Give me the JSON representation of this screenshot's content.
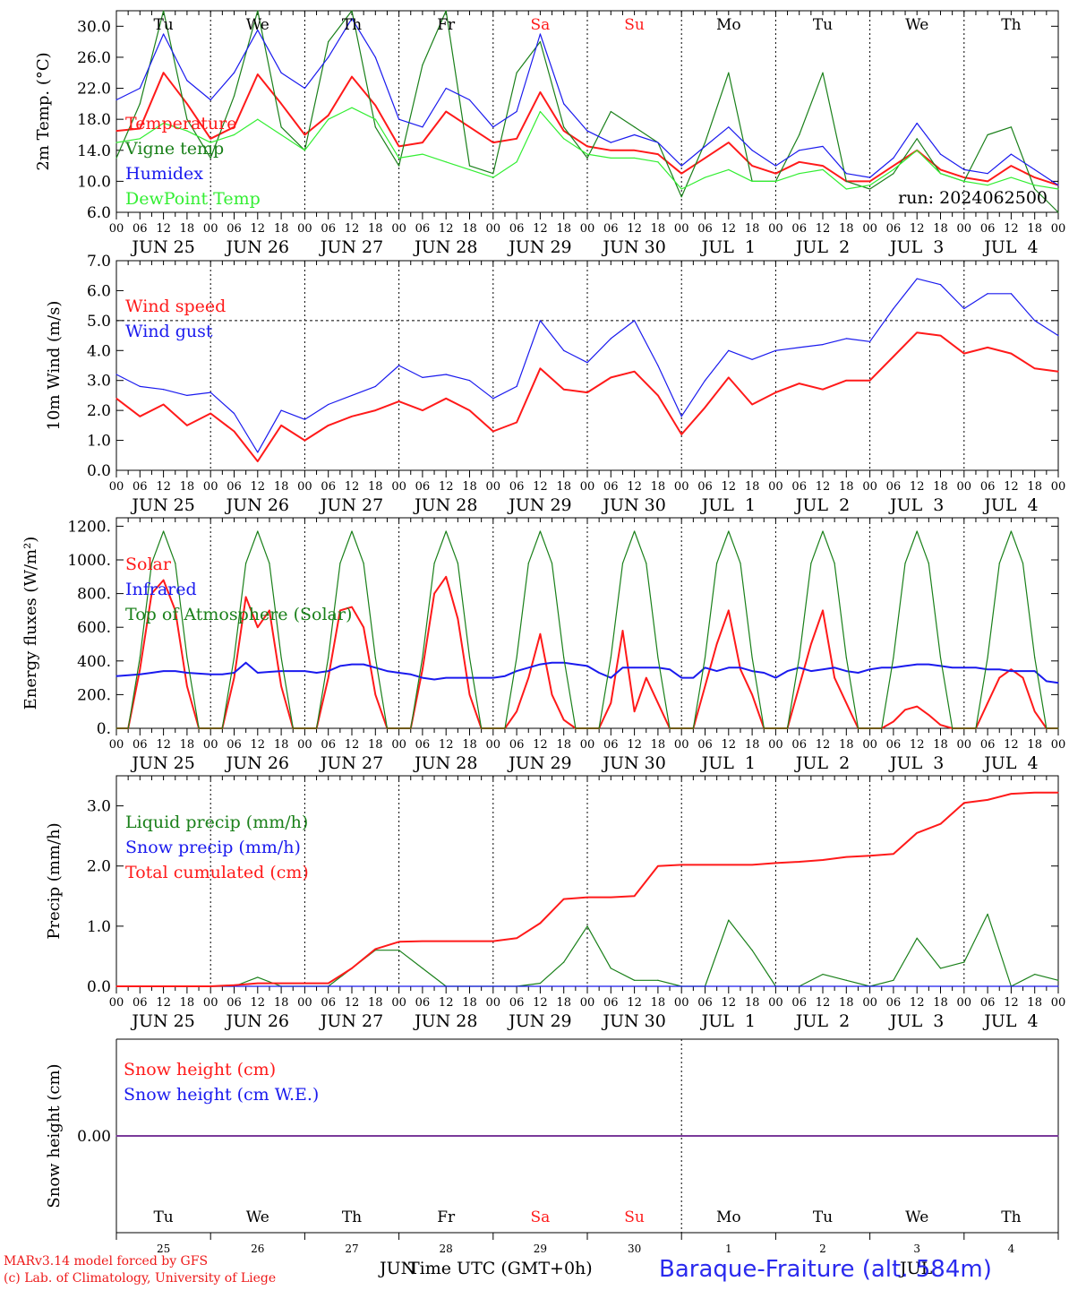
{
  "colors": {
    "red": "#ff1a1a",
    "darkgreen": "#1a801a",
    "blue": "#1a1aee",
    "lightgreen": "#33ee33",
    "purple": "#7a3a9a"
  },
  "days": [
    {
      "abbr": "Tu",
      "date": "JUN 25",
      "num": "25",
      "weekend": false
    },
    {
      "abbr": "We",
      "date": "JUN 26",
      "num": "26",
      "weekend": false
    },
    {
      "abbr": "Th",
      "date": "JUN 27",
      "num": "27",
      "weekend": false
    },
    {
      "abbr": "Fr",
      "date": "JUN 28",
      "num": "28",
      "weekend": false
    },
    {
      "abbr": "Sa",
      "date": "JUN 29",
      "num": "29",
      "weekend": true
    },
    {
      "abbr": "Su",
      "date": "JUN 30",
      "num": "30",
      "weekend": true
    },
    {
      "abbr": "Mo",
      "date": "JUL  1",
      "num": "1",
      "weekend": false
    },
    {
      "abbr": "Tu",
      "date": "JUL  2",
      "num": "2",
      "weekend": false
    },
    {
      "abbr": "We",
      "date": "JUL  3",
      "num": "3",
      "weekend": false
    },
    {
      "abbr": "Th",
      "date": "JUL  4",
      "num": "4",
      "weekend": false
    }
  ],
  "hour_ticks": [
    "00",
    "06",
    "12",
    "18"
  ],
  "run_label": "run: 2024062500",
  "bottom": {
    "month_left": "JUN",
    "month_right": "JUL",
    "axis_label": "Time UTC (GMT+0h)",
    "credit_line1": "MARv3.14 model forced by GFS",
    "credit_line2": "(c) Lab. of Climatology, University of Liege",
    "station": "Baraque-Fraiture (alt. 584m)"
  },
  "chart_data": [
    {
      "type": "line",
      "ylabel": "2m Temp. (°C)",
      "ylim": [
        6,
        32
      ],
      "yticks": [
        "6.0",
        "10.0",
        "14.0",
        "18.0",
        "22.0",
        "26.0",
        "30.0"
      ],
      "x_hours": [
        0,
        6,
        12,
        18,
        24,
        30,
        36,
        42,
        48,
        54,
        60,
        66,
        72,
        78,
        84,
        90,
        96,
        102,
        108,
        114,
        120,
        126,
        132,
        138,
        144,
        150,
        156,
        162,
        168,
        174,
        180,
        186,
        192,
        198,
        204,
        210,
        216,
        222,
        228,
        234,
        240
      ],
      "legend": [
        "Temperature",
        "Vigne temp",
        "Humidex",
        "DewPoint Temp"
      ],
      "series": [
        {
          "name": "Temperature",
          "color": "red",
          "values": [
            16.5,
            16.8,
            24.0,
            20.0,
            15.5,
            17.0,
            23.8,
            20.0,
            16.0,
            18.5,
            23.5,
            19.8,
            14.5,
            15.0,
            19.0,
            17.0,
            15.0,
            15.5,
            21.5,
            16.5,
            14.5,
            14.0,
            14.0,
            13.5,
            11.0,
            13.0,
            15.0,
            12.0,
            11.0,
            12.5,
            12.0,
            10.0,
            10.0,
            12.0,
            14.0,
            11.5,
            10.5,
            10.0,
            12.0,
            10.5,
            9.5
          ]
        },
        {
          "name": "Vigne temp",
          "color": "darkgreen",
          "values": [
            13.0,
            20.0,
            32.0,
            18.0,
            13.0,
            21.0,
            32.0,
            17.0,
            14.0,
            28.0,
            32.0,
            17.0,
            12.0,
            25.0,
            32.0,
            12.0,
            11.0,
            24.0,
            28.0,
            17.0,
            13.0,
            19.0,
            17.0,
            15.0,
            8.0,
            15.0,
            24.0,
            10.0,
            10.0,
            16.0,
            24.0,
            10.0,
            9.0,
            11.0,
            15.5,
            11.0,
            10.0,
            16.0,
            17.0,
            9.0,
            6.0
          ]
        },
        {
          "name": "Humidex",
          "color": "blue",
          "values": [
            20.5,
            22.0,
            29.0,
            23.0,
            20.5,
            24.0,
            29.5,
            24.0,
            22.0,
            26.0,
            31.0,
            26.0,
            18.0,
            17.0,
            22.0,
            20.5,
            17.0,
            19.0,
            29.0,
            20.0,
            16.5,
            15.0,
            16.0,
            15.0,
            12.0,
            14.5,
            17.0,
            14.0,
            12.0,
            14.0,
            14.5,
            11.0,
            10.5,
            13.0,
            17.5,
            13.5,
            11.5,
            11.0,
            13.5,
            11.5,
            9.5
          ]
        },
        {
          "name": "DewPoint Temp",
          "color": "lightgreen",
          "values": [
            15.0,
            15.5,
            17.5,
            16.5,
            15.0,
            16.0,
            18.0,
            16.0,
            14.0,
            18.0,
            19.5,
            18.0,
            13.0,
            13.5,
            12.5,
            11.5,
            10.5,
            12.5,
            19.0,
            15.5,
            13.5,
            13.0,
            13.0,
            12.5,
            9.0,
            10.5,
            11.5,
            10.0,
            10.0,
            11.0,
            11.5,
            9.0,
            9.5,
            11.5,
            14.0,
            11.0,
            10.0,
            9.5,
            10.5,
            9.5,
            9.0
          ]
        }
      ]
    },
    {
      "type": "line",
      "ylabel": "10m Wind (m/s)",
      "ylim": [
        0,
        7
      ],
      "yticks": [
        "0.0",
        "1.0",
        "2.0",
        "3.0",
        "4.0",
        "5.0",
        "6.0",
        "7.0"
      ],
      "reference_line": 5.0,
      "x_hours": [
        0,
        6,
        12,
        18,
        24,
        30,
        36,
        42,
        48,
        54,
        60,
        66,
        72,
        78,
        84,
        90,
        96,
        102,
        108,
        114,
        120,
        126,
        132,
        138,
        144,
        150,
        156,
        162,
        168,
        174,
        180,
        186,
        192,
        198,
        204,
        210,
        216,
        222,
        228,
        234,
        240
      ],
      "legend": [
        "Wind speed",
        "Wind gust"
      ],
      "series": [
        {
          "name": "Wind speed",
          "color": "red",
          "values": [
            2.4,
            1.8,
            2.2,
            1.5,
            1.9,
            1.3,
            0.3,
            1.5,
            1.0,
            1.5,
            1.8,
            2.0,
            2.3,
            2.0,
            2.4,
            2.0,
            1.3,
            1.6,
            3.4,
            2.7,
            2.6,
            3.1,
            3.3,
            2.5,
            1.2,
            2.1,
            3.1,
            2.2,
            2.6,
            2.9,
            2.7,
            3.0,
            3.0,
            3.8,
            4.6,
            4.5,
            3.9,
            4.1,
            3.9,
            3.4,
            3.3
          ]
        },
        {
          "name": "Wind gust",
          "color": "blue",
          "values": [
            3.2,
            2.8,
            2.7,
            2.5,
            2.6,
            1.9,
            0.6,
            2.0,
            1.7,
            2.2,
            2.5,
            2.8,
            3.5,
            3.1,
            3.2,
            3.0,
            2.4,
            2.8,
            5.0,
            4.0,
            3.6,
            4.4,
            5.0,
            3.5,
            1.8,
            3.0,
            4.0,
            3.7,
            4.0,
            4.1,
            4.2,
            4.4,
            4.3,
            5.4,
            6.4,
            6.2,
            5.4,
            5.9,
            5.9,
            5.0,
            4.5
          ]
        }
      ]
    },
    {
      "type": "line",
      "ylabel": "Energy fluxes (W/m²)",
      "ylim": [
        0,
        1200
      ],
      "yticks": [
        "0.",
        "200.",
        "400.",
        "600.",
        "800.",
        "1000.",
        "1200."
      ],
      "x_hours": [
        0,
        3,
        6,
        9,
        12,
        15,
        18,
        21,
        24,
        27,
        30,
        33,
        36,
        39,
        42,
        45,
        48,
        51,
        54,
        57,
        60,
        63,
        66,
        69,
        72,
        75,
        78,
        81,
        84,
        87,
        90,
        93,
        96,
        99,
        102,
        105,
        108,
        111,
        114,
        117,
        120,
        123,
        126,
        129,
        132,
        135,
        138,
        141,
        144,
        147,
        150,
        153,
        156,
        159,
        162,
        165,
        168,
        171,
        174,
        177,
        180,
        183,
        186,
        189,
        192,
        195,
        198,
        201,
        204,
        207,
        210,
        213,
        216,
        219,
        222,
        225,
        228,
        231,
        234,
        237,
        240
      ],
      "legend": [
        "Solar",
        "Infrared",
        "Top of Atmosphere (Solar)"
      ],
      "series": [
        {
          "name": "Solar",
          "color": "red",
          "values": [
            0,
            0,
            350,
            800,
            880,
            700,
            250,
            0,
            0,
            0,
            300,
            780,
            600,
            700,
            250,
            0,
            0,
            0,
            300,
            700,
            720,
            600,
            200,
            0,
            0,
            0,
            350,
            800,
            900,
            650,
            200,
            0,
            0,
            0,
            100,
            300,
            560,
            200,
            50,
            0,
            0,
            0,
            150,
            580,
            100,
            300,
            150,
            0,
            0,
            0,
            250,
            500,
            700,
            350,
            200,
            0,
            0,
            0,
            250,
            500,
            700,
            300,
            150,
            0,
            0,
            0,
            40,
            110,
            130,
            80,
            20,
            0,
            0,
            0,
            150,
            300,
            350,
            300,
            100,
            0,
            0
          ]
        },
        {
          "name": "Infrared",
          "color": "blue",
          "values": [
            310,
            315,
            320,
            330,
            340,
            340,
            330,
            325,
            320,
            320,
            330,
            390,
            330,
            335,
            340,
            340,
            340,
            330,
            340,
            370,
            380,
            380,
            360,
            340,
            330,
            320,
            300,
            290,
            300,
            300,
            300,
            300,
            300,
            310,
            340,
            360,
            380,
            390,
            390,
            380,
            370,
            330,
            300,
            360,
            360,
            360,
            360,
            350,
            300,
            300,
            360,
            340,
            360,
            360,
            340,
            330,
            300,
            340,
            360,
            340,
            350,
            360,
            340,
            330,
            350,
            360,
            360,
            370,
            380,
            380,
            370,
            360,
            360,
            360,
            350,
            350,
            340,
            340,
            340,
            280,
            270
          ]
        },
        {
          "name": "Top of Atmosphere (Solar)",
          "color": "darkgreen",
          "values": [
            0,
            0,
            420,
            980,
            1170,
            980,
            420,
            0,
            0,
            0,
            420,
            980,
            1170,
            980,
            420,
            0,
            0,
            0,
            420,
            980,
            1170,
            980,
            420,
            0,
            0,
            0,
            420,
            980,
            1170,
            980,
            420,
            0,
            0,
            0,
            420,
            980,
            1170,
            980,
            420,
            0,
            0,
            0,
            420,
            980,
            1170,
            980,
            420,
            0,
            0,
            0,
            420,
            980,
            1170,
            980,
            420,
            0,
            0,
            0,
            420,
            980,
            1170,
            980,
            420,
            0,
            0,
            0,
            420,
            980,
            1170,
            980,
            420,
            0,
            0,
            0,
            420,
            980,
            1170,
            980,
            420,
            0,
            0
          ]
        }
      ]
    },
    {
      "type": "line",
      "ylabel": "Precip (mm/h)",
      "ylim": [
        0,
        3.5
      ],
      "yticks": [
        "0.0",
        "1.0",
        "2.0",
        "3.0"
      ],
      "x_hours": [
        0,
        6,
        12,
        18,
        24,
        30,
        36,
        42,
        48,
        54,
        60,
        66,
        72,
        78,
        84,
        90,
        96,
        102,
        108,
        114,
        120,
        126,
        132,
        138,
        144,
        150,
        156,
        162,
        168,
        174,
        180,
        186,
        192,
        198,
        204,
        210,
        216,
        222,
        228,
        234,
        240
      ],
      "legend": [
        "Liquid precip (mm/h)",
        "Snow precip (mm/h)",
        "Total cumulated (cm)"
      ],
      "series": [
        {
          "name": "Liquid precip (mm/h)",
          "color": "darkgreen",
          "values": [
            0,
            0,
            0,
            0,
            0,
            0,
            0.15,
            0,
            0,
            0,
            0.3,
            0.6,
            0.6,
            0.3,
            0,
            0,
            0,
            0,
            0.05,
            0.4,
            1.0,
            0.3,
            0.1,
            0.1,
            0,
            0,
            1.1,
            0.6,
            0,
            0,
            0.2,
            0.1,
            0,
            0.1,
            0.8,
            0.3,
            0.4,
            1.2,
            0,
            0.2,
            0.1
          ]
        },
        {
          "name": "Snow precip (mm/h)",
          "color": "blue",
          "values": [
            0,
            0,
            0,
            0,
            0,
            0,
            0,
            0,
            0,
            0,
            0,
            0,
            0,
            0,
            0,
            0,
            0,
            0,
            0,
            0,
            0,
            0,
            0,
            0,
            0,
            0,
            0,
            0,
            0,
            0,
            0,
            0,
            0,
            0,
            0,
            0,
            0,
            0,
            0,
            0,
            0
          ]
        },
        {
          "name": "Total cumulated (cm)",
          "color": "red",
          "values": [
            0,
            0,
            0,
            0,
            0,
            0.02,
            0.05,
            0.05,
            0.05,
            0.05,
            0.3,
            0.62,
            0.74,
            0.75,
            0.75,
            0.75,
            0.75,
            0.8,
            1.05,
            1.45,
            1.48,
            1.48,
            1.5,
            2.0,
            2.02,
            2.02,
            2.02,
            2.02,
            2.05,
            2.07,
            2.1,
            2.15,
            2.17,
            2.2,
            2.55,
            2.7,
            3.05,
            3.1,
            3.2,
            3.22,
            3.22
          ]
        }
      ]
    },
    {
      "type": "line",
      "ylabel": "Snow height (cm)",
      "ylim": [
        -1,
        1
      ],
      "yticks": [
        "0.00"
      ],
      "x_hours": [
        0,
        240
      ],
      "legend": [
        "Snow height (cm)",
        "Snow height (cm W.E.)"
      ],
      "series": [
        {
          "name": "Snow height (cm)",
          "color": "red",
          "values": [
            0,
            0
          ]
        },
        {
          "name": "Snow height (cm W.E.)",
          "color": "blue",
          "values": [
            0,
            0
          ]
        }
      ]
    }
  ]
}
